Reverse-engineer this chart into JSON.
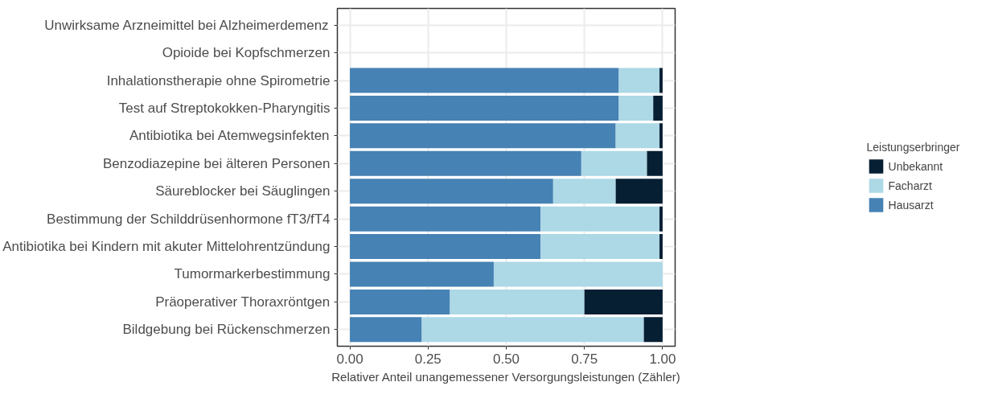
{
  "chart_data": {
    "type": "bar",
    "orientation": "horizontal",
    "stacked": true,
    "xlabel": "Relativer Anteil unangemessener Versorgungsleistungen (Zähler)",
    "legend_title": "Leistungserbringer",
    "categories": [
      "Unwirksame Arzneimittel bei Alzheimerdemenz",
      "Opioide bei Kopfschmerzen",
      "Inhalationstherapie ohne Spirometrie",
      "Test auf Streptokokken-Pharyngitis",
      "Antibiotika bei Atemwegsinfekten",
      "Benzodiazepine bei älteren Personen",
      "Säureblocker bei Säuglingen",
      "Bestimmung der Schilddrüsenhormone fT3/fT4",
      "Antibiotika bei Kindern mit akuter Mittelohrentzündung",
      "Tumormarkerbestimmung",
      "Präoperativer Thoraxröntgen",
      "Bildgebung bei Rückenschmerzen"
    ],
    "series": [
      {
        "name": "Hausarzt",
        "color": "#4682b4",
        "values": [
          null,
          null,
          0.86,
          0.86,
          0.85,
          0.74,
          0.65,
          0.61,
          0.61,
          0.46,
          0.32,
          0.23
        ]
      },
      {
        "name": "Facharzt",
        "color": "#add8e6",
        "values": [
          null,
          null,
          0.13,
          0.11,
          0.14,
          0.21,
          0.2,
          0.38,
          0.38,
          0.54,
          0.43,
          0.71
        ]
      },
      {
        "name": "Unbekannt",
        "color": "#061f33",
        "values": [
          null,
          null,
          0.01,
          0.03,
          0.01,
          0.05,
          0.15,
          0.01,
          0.01,
          0.0,
          0.25,
          0.06
        ]
      }
    ],
    "xlim": [
      -0.04,
      1.04
    ],
    "xticks": [
      {
        "value": 0,
        "label": "0.00"
      },
      {
        "value": 0.25,
        "label": "0.25"
      },
      {
        "value": 0.5,
        "label": "0.50"
      },
      {
        "value": 0.75,
        "label": "0.75"
      },
      {
        "value": 1,
        "label": "1.00"
      }
    ],
    "grid": true,
    "legend": "right"
  }
}
